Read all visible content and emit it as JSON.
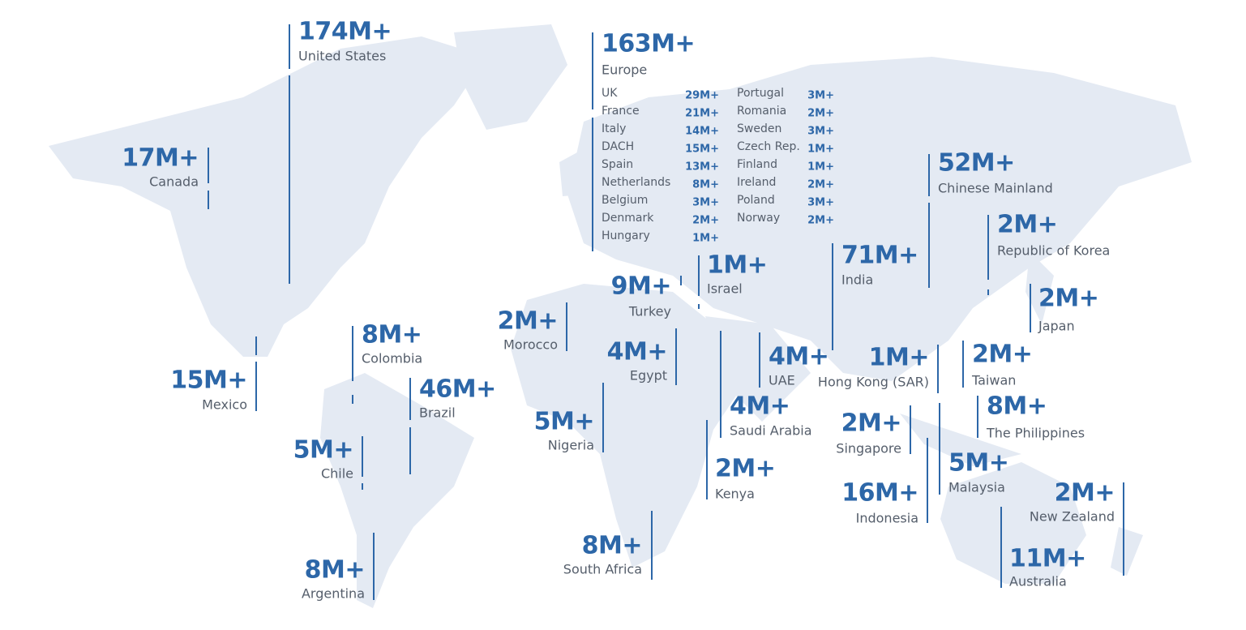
{
  "regions": [
    {
      "value": "174M+",
      "name": "United States"
    },
    {
      "value": "17M+",
      "name": "Canada"
    },
    {
      "value": "52M+",
      "name": "Chinese Mainland"
    },
    {
      "value": "2M+",
      "name": "Republic of Korea"
    },
    {
      "value": "71M+",
      "name": "India"
    },
    {
      "value": "1M+",
      "name": "Israel"
    },
    {
      "value": "9M+",
      "name": "Turkey"
    },
    {
      "value": "2M+",
      "name": "Japan"
    },
    {
      "value": "2M+",
      "name": "Morocco"
    },
    {
      "value": "15M+",
      "name": "Mexico"
    },
    {
      "value": "8M+",
      "name": "Colombia"
    },
    {
      "value": "46M+",
      "name": "Brazil"
    },
    {
      "value": "4M+",
      "name": "Egypt"
    },
    {
      "value": "4M+",
      "name": "UAE"
    },
    {
      "value": "1M+",
      "name": "Hong Kong (SAR)"
    },
    {
      "value": "2M+",
      "name": "Taiwan"
    },
    {
      "value": "4M+",
      "name": "Saudi Arabia"
    },
    {
      "value": "5M+",
      "name": "Nigeria"
    },
    {
      "value": "8M+",
      "name": "The Philippines"
    },
    {
      "value": "5M+",
      "name": "Chile"
    },
    {
      "value": "2M+",
      "name": "Singapore"
    },
    {
      "value": "5M+",
      "name": "Malaysia"
    },
    {
      "value": "2M+",
      "name": "Kenya"
    },
    {
      "value": "16M+",
      "name": "Indonesia"
    },
    {
      "value": "2M+",
      "name": "New Zealand"
    },
    {
      "value": "11M+",
      "name": "Australia"
    },
    {
      "value": "8M+",
      "name": "South Africa"
    },
    {
      "value": "8M+",
      "name": "Argentina"
    }
  ],
  "europe": {
    "value": "163M+",
    "name": "Europe",
    "countries": [
      {
        "name": "UK",
        "value": "29M+"
      },
      {
        "name": "France",
        "value": "21M+"
      },
      {
        "name": "Italy",
        "value": "14M+"
      },
      {
        "name": "DACH",
        "value": "15M+"
      },
      {
        "name": "Spain",
        "value": "13M+"
      },
      {
        "name": "Netherlands",
        "value": "8M+"
      },
      {
        "name": "Belgium",
        "value": "3M+"
      },
      {
        "name": "Denmark",
        "value": "2M+"
      },
      {
        "name": "Hungary",
        "value": "1M+"
      },
      {
        "name": "Portugal",
        "value": "3M+"
      },
      {
        "name": "Romania",
        "value": "2M+"
      },
      {
        "name": "Sweden",
        "value": "3M+"
      },
      {
        "name": "Czech Rep.",
        "value": "1M+"
      },
      {
        "name": "Finland",
        "value": "1M+"
      },
      {
        "name": "Ireland",
        "value": "2M+"
      },
      {
        "name": "Poland",
        "value": "3M+"
      },
      {
        "name": "Norway",
        "value": "2M+"
      }
    ]
  }
}
